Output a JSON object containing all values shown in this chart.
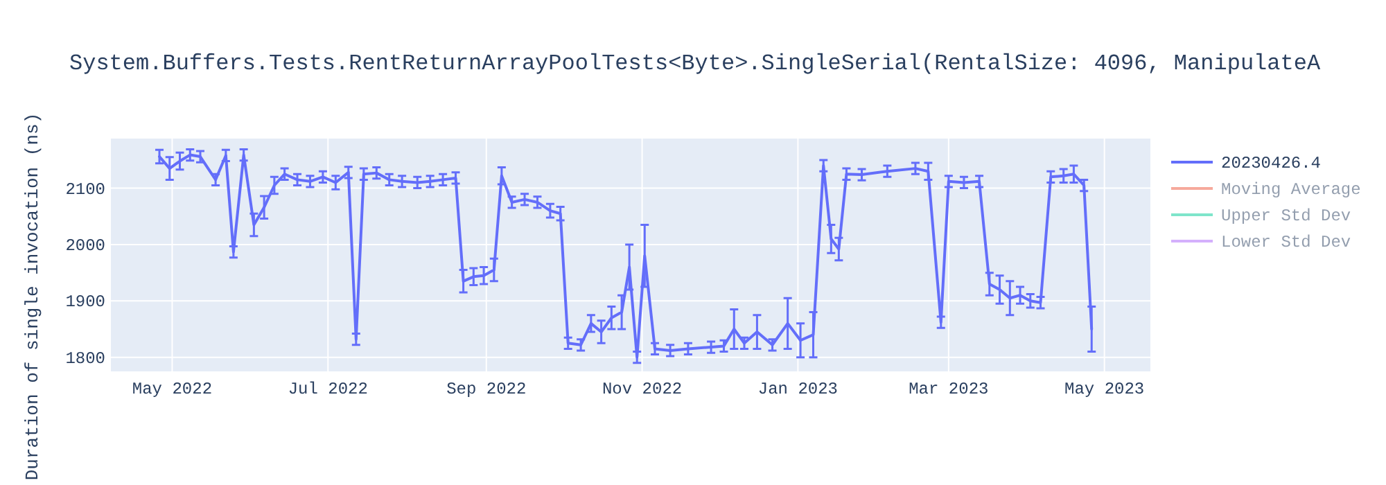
{
  "chart_data": {
    "type": "line",
    "title": "System.Buffers.Tests.RentReturnArrayPoolTests<Byte>.SingleSerial(RentalSize: 4096, ManipulateA",
    "ylabel": "Duration of single invocation (ns)",
    "xlim": [
      "2022-04-07",
      "2023-05-19"
    ],
    "ylim": [
      1775,
      2188
    ],
    "xticks": [
      {
        "value": "2022-05-01",
        "label": "May 2022"
      },
      {
        "value": "2022-07-01",
        "label": "Jul 2022"
      },
      {
        "value": "2022-09-01",
        "label": "Sep 2022"
      },
      {
        "value": "2022-11-01",
        "label": "Nov 2022"
      },
      {
        "value": "2023-01-01",
        "label": "Jan 2023"
      },
      {
        "value": "2023-03-01",
        "label": "Mar 2023"
      },
      {
        "value": "2023-05-01",
        "label": "May 2023"
      }
    ],
    "yticks": [
      1800,
      1900,
      2000,
      2100
    ],
    "grid": true,
    "legend": "right",
    "line_style": "solid",
    "series": [
      {
        "name": "20230426.4",
        "color": "#636efa",
        "x": [
          "2022-04-26",
          "2022-04-30",
          "2022-05-04",
          "2022-05-08",
          "2022-05-12",
          "2022-05-18",
          "2022-05-22",
          "2022-05-25",
          "2022-05-29",
          "2022-06-02",
          "2022-06-06",
          "2022-06-10",
          "2022-06-14",
          "2022-06-19",
          "2022-06-24",
          "2022-06-29",
          "2022-07-04",
          "2022-07-09",
          "2022-07-12",
          "2022-07-15",
          "2022-07-20",
          "2022-07-25",
          "2022-07-30",
          "2022-08-05",
          "2022-08-10",
          "2022-08-15",
          "2022-08-20",
          "2022-08-23",
          "2022-08-27",
          "2022-08-31",
          "2022-09-04",
          "2022-09-07",
          "2022-09-11",
          "2022-09-16",
          "2022-09-21",
          "2022-09-26",
          "2022-09-30",
          "2022-10-03",
          "2022-10-08",
          "2022-10-12",
          "2022-10-16",
          "2022-10-20",
          "2022-10-24",
          "2022-10-27",
          "2022-10-30",
          "2022-11-02",
          "2022-11-06",
          "2022-11-12",
          "2022-11-19",
          "2022-11-28",
          "2022-12-03",
          "2022-12-07",
          "2022-12-11",
          "2022-12-16",
          "2022-12-22",
          "2022-12-28",
          "2023-01-02",
          "2023-01-07",
          "2023-01-11",
          "2023-01-14",
          "2023-01-17",
          "2023-01-20",
          "2023-01-26",
          "2023-02-05",
          "2023-02-16",
          "2023-02-21",
          "2023-02-26",
          "2023-03-01",
          "2023-03-07",
          "2023-03-13",
          "2023-03-17",
          "2023-03-21",
          "2023-03-25",
          "2023-03-29",
          "2023-04-02",
          "2023-04-06",
          "2023-04-10",
          "2023-04-15",
          "2023-04-19",
          "2023-04-23",
          "2023-04-26"
        ],
        "values": [
          2156,
          2135,
          2148,
          2159,
          2156,
          2115,
          2158,
          1987,
          2159,
          2035,
          2066,
          2105,
          2125,
          2115,
          2112,
          2120,
          2110,
          2128,
          1832,
          2125,
          2127,
          2115,
          2112,
          2110,
          2112,
          2115,
          2118,
          1935,
          1943,
          1945,
          1955,
          2122,
          2075,
          2080,
          2075,
          2060,
          2055,
          1825,
          1822,
          1860,
          1845,
          1870,
          1880,
          1960,
          1800,
          1980,
          1815,
          1812,
          1815,
          1818,
          1820,
          1850,
          1825,
          1845,
          1822,
          1860,
          1830,
          1840,
          2140,
          2010,
          1992,
          2125,
          2124,
          2130,
          2135,
          2130,
          1862,
          2112,
          2110,
          2112,
          1930,
          1920,
          1905,
          1910,
          1900,
          1897,
          2120,
          2122,
          2125,
          2105,
          1850
        ],
        "errors": [
          12,
          20,
          15,
          10,
          10,
          10,
          10,
          10,
          10,
          20,
          20,
          15,
          10,
          10,
          10,
          10,
          12,
          10,
          10,
          10,
          10,
          10,
          10,
          10,
          10,
          10,
          10,
          20,
          15,
          15,
          20,
          15,
          10,
          10,
          10,
          12,
          12,
          10,
          10,
          15,
          20,
          20,
          30,
          40,
          10,
          55,
          10,
          10,
          10,
          10,
          10,
          35,
          10,
          30,
          10,
          45,
          30,
          40,
          10,
          25,
          20,
          10,
          10,
          10,
          10,
          15,
          10,
          10,
          10,
          10,
          20,
          25,
          30,
          15,
          12,
          10,
          10,
          12,
          15,
          10,
          40
        ]
      },
      {
        "name": "Moving Average",
        "color": "#ef553b",
        "values": [
          null
        ]
      },
      {
        "name": "Upper Std Dev",
        "color": "#00cc96",
        "values": [
          null
        ]
      },
      {
        "name": "Lower Std Dev",
        "color": "#ab63fa",
        "values": [
          null
        ]
      }
    ]
  }
}
